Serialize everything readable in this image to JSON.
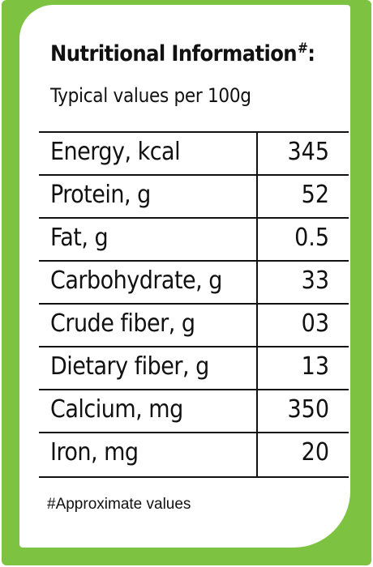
{
  "colors": {
    "frame_green": "#7ec242",
    "card_white": "#ffffff",
    "text": "#111111"
  },
  "header": {
    "title": "Nutritional Information",
    "title_mark": "#",
    "title_colon": ":",
    "subtitle": "Typical values per 100g"
  },
  "table": {
    "rows": [
      {
        "label": "Energy, kcal",
        "value": "345"
      },
      {
        "label": "Protein, g",
        "value": "52"
      },
      {
        "label": "Fat, g",
        "value": "0.5"
      },
      {
        "label": "Carbohydrate, g",
        "value": "33"
      },
      {
        "label": "Crude fiber, g",
        "value": "03"
      },
      {
        "label": "Dietary fiber, g",
        "value": "13"
      },
      {
        "label": "Calcium, mg",
        "value": "350"
      },
      {
        "label": "Iron, mg",
        "value": "20"
      }
    ]
  },
  "footnote": "#Approximate values"
}
